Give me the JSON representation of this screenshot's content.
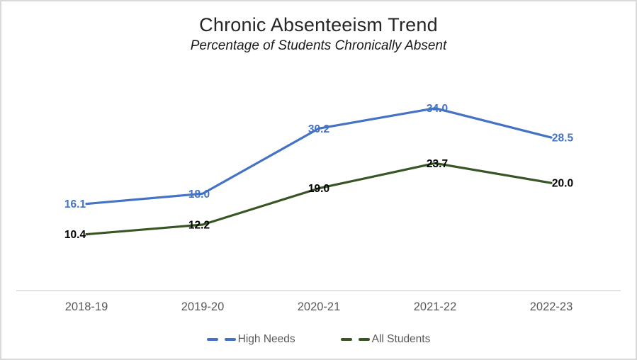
{
  "frame": {
    "background": "#ffffff",
    "border_color": "#d9d9d9"
  },
  "chart_data": {
    "type": "line",
    "title": "Chronic Absenteeism Trend",
    "subtitle": "Percentage of Students Chronically Absent",
    "categories": [
      "2018-19",
      "2019-20",
      "2020-21",
      "2021-22",
      "2022-23"
    ],
    "series": [
      {
        "name": "High Needs",
        "color": "#4472C4",
        "label_color": "#4472C4",
        "values": [
          16.1,
          18.0,
          30.2,
          34.0,
          28.5
        ]
      },
      {
        "name": "All Students",
        "color": "#375623",
        "label_color": "#000000",
        "values": [
          10.4,
          12.2,
          19.0,
          23.7,
          20.0
        ]
      }
    ],
    "value_format": "one_decimal",
    "ylim": [
      0,
      42
    ],
    "grid": false,
    "y_axis_visible": false,
    "axis_line_color": "#d9d9d9",
    "tick_label_color": "#595959",
    "legend_position": "bottom",
    "legend_text_color": "#595959",
    "data_label_position": "center"
  }
}
